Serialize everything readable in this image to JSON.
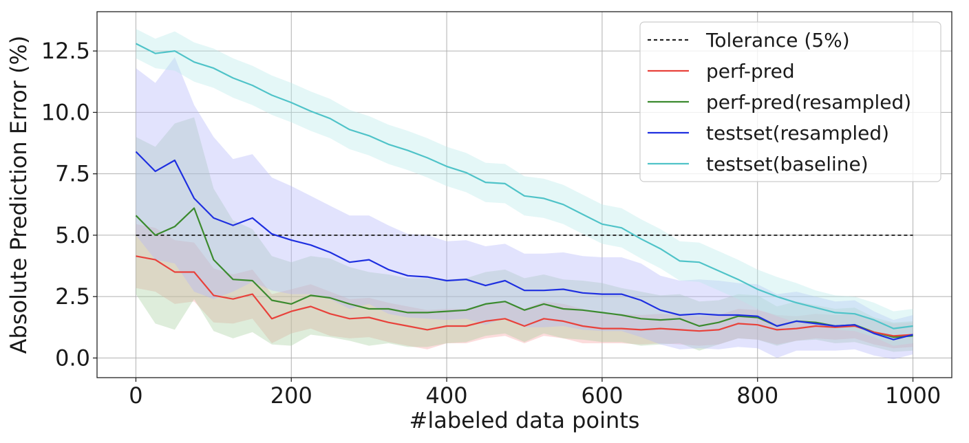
{
  "chart_data": {
    "type": "line",
    "title": "",
    "xlabel": "#labeled data points",
    "ylabel": "Absolute Prediction Error (%)",
    "xlim": [
      -50,
      1050
    ],
    "ylim": [
      -0.8,
      14.1
    ],
    "grid": true,
    "legend_position": "top-right",
    "x_ticks": [
      0,
      200,
      400,
      600,
      800,
      1000
    ],
    "x_tick_labels": [
      "0",
      "200",
      "400",
      "600",
      "800",
      "1000"
    ],
    "y_ticks": [
      0.0,
      2.5,
      5.0,
      7.5,
      10.0,
      12.5
    ],
    "y_tick_labels": [
      "0.0",
      "2.5",
      "5.0",
      "7.5",
      "10.0",
      "12.5"
    ],
    "tolerance": {
      "name": "Tolerance (5%)",
      "value": 5.0,
      "color": "#222222"
    },
    "x": [
      0,
      25,
      50,
      75,
      100,
      125,
      150,
      175,
      200,
      225,
      250,
      275,
      300,
      325,
      350,
      375,
      400,
      425,
      450,
      475,
      500,
      525,
      550,
      575,
      600,
      625,
      650,
      675,
      700,
      725,
      750,
      775,
      800,
      825,
      850,
      875,
      900,
      925,
      950,
      975,
      1000
    ],
    "series": [
      {
        "name": "perf-pred",
        "color": "#e8413a",
        "band_color": "#f7a3a3",
        "values": [
          4.15,
          4.0,
          3.5,
          3.5,
          2.55,
          2.4,
          2.6,
          1.6,
          1.9,
          2.1,
          1.8,
          1.6,
          1.65,
          1.45,
          1.3,
          1.15,
          1.3,
          1.3,
          1.5,
          1.6,
          1.3,
          1.6,
          1.5,
          1.3,
          1.2,
          1.2,
          1.15,
          1.2,
          1.15,
          1.1,
          1.15,
          1.4,
          1.35,
          1.15,
          1.2,
          1.3,
          1.25,
          1.3,
          1.05,
          0.9,
          0.95
        ],
        "spread": [
          1.3,
          1.3,
          1.3,
          1.2,
          1.1,
          1.0,
          1.0,
          1.0,
          0.9,
          0.9,
          0.9,
          0.8,
          0.8,
          0.8,
          0.8,
          0.8,
          0.7,
          0.7,
          0.7,
          0.7,
          0.7,
          0.7,
          0.7,
          0.7,
          0.6,
          0.6,
          0.6,
          0.6,
          0.6,
          0.6,
          0.6,
          0.6,
          0.6,
          0.6,
          0.5,
          0.5,
          0.5,
          0.5,
          0.5,
          0.5,
          0.5
        ]
      },
      {
        "name": "perf-pred(resampled)",
        "color": "#3b8a2e",
        "band_color": "#a8cfa0",
        "values": [
          5.8,
          5.0,
          5.35,
          6.1,
          4.0,
          3.2,
          3.15,
          2.35,
          2.2,
          2.55,
          2.45,
          2.2,
          2.0,
          2.0,
          1.85,
          1.85,
          1.9,
          1.95,
          2.2,
          2.3,
          1.95,
          2.2,
          2.0,
          1.95,
          1.85,
          1.75,
          1.6,
          1.55,
          1.6,
          1.3,
          1.45,
          1.7,
          1.65,
          1.3,
          1.5,
          1.45,
          1.3,
          1.35,
          1.05,
          0.85,
          0.9
        ],
        "spread": [
          3.2,
          3.6,
          4.2,
          3.7,
          2.9,
          2.4,
          2.1,
          1.8,
          1.7,
          1.6,
          1.6,
          1.5,
          1.5,
          1.4,
          1.4,
          1.4,
          1.3,
          1.3,
          1.3,
          1.3,
          1.3,
          1.2,
          1.2,
          1.2,
          1.2,
          1.1,
          1.1,
          1.0,
          1.0,
          1.0,
          0.9,
          0.9,
          0.9,
          0.8,
          0.8,
          0.7,
          0.7,
          0.7,
          0.6,
          0.6,
          0.6
        ]
      },
      {
        "name": "testset(resampled)",
        "color": "#1e2fe0",
        "band_color": "#b4b6fb",
        "values": [
          8.4,
          7.6,
          8.05,
          6.5,
          5.7,
          5.4,
          5.7,
          5.05,
          4.8,
          4.6,
          4.3,
          3.9,
          4.0,
          3.6,
          3.35,
          3.3,
          3.15,
          3.2,
          2.95,
          3.15,
          2.75,
          2.75,
          2.8,
          2.65,
          2.6,
          2.6,
          2.35,
          1.95,
          1.75,
          1.8,
          1.75,
          1.75,
          1.7,
          1.3,
          1.5,
          1.4,
          1.3,
          1.35,
          1.0,
          0.75,
          0.95
        ],
        "spread": [
          3.4,
          3.6,
          4.2,
          3.8,
          3.3,
          2.7,
          2.6,
          2.3,
          2.2,
          2.0,
          1.9,
          1.9,
          1.8,
          1.8,
          1.7,
          1.7,
          1.6,
          1.6,
          1.6,
          1.5,
          1.5,
          1.5,
          1.5,
          1.5,
          1.5,
          1.5,
          1.5,
          1.4,
          1.4,
          1.4,
          1.4,
          1.3,
          1.3,
          1.3,
          1.2,
          1.1,
          1.0,
          1.0,
          0.9,
          0.8,
          0.8
        ]
      },
      {
        "name": "testset(baseline)",
        "color": "#4fc3c8",
        "band_color": "#b9e9e9",
        "values": [
          12.8,
          12.4,
          12.5,
          12.05,
          11.8,
          11.4,
          11.1,
          10.7,
          10.4,
          10.05,
          9.75,
          9.3,
          9.05,
          8.7,
          8.45,
          8.15,
          7.8,
          7.55,
          7.15,
          7.1,
          6.6,
          6.5,
          6.25,
          5.85,
          5.45,
          5.3,
          4.85,
          4.45,
          3.95,
          3.9,
          3.55,
          3.2,
          2.8,
          2.5,
          2.25,
          2.05,
          1.85,
          1.8,
          1.55,
          1.2,
          1.3
        ],
        "spread": [
          0.6,
          0.6,
          0.8,
          0.8,
          0.8,
          0.8,
          0.8,
          0.8,
          0.8,
          0.8,
          0.8,
          0.8,
          0.8,
          0.8,
          0.8,
          0.8,
          0.8,
          0.8,
          0.8,
          0.8,
          0.8,
          0.8,
          0.8,
          0.8,
          0.8,
          0.8,
          0.8,
          0.8,
          0.8,
          0.8,
          0.8,
          0.8,
          0.8,
          0.8,
          0.8,
          0.7,
          0.7,
          0.7,
          0.7,
          0.7,
          0.7
        ]
      }
    ]
  }
}
